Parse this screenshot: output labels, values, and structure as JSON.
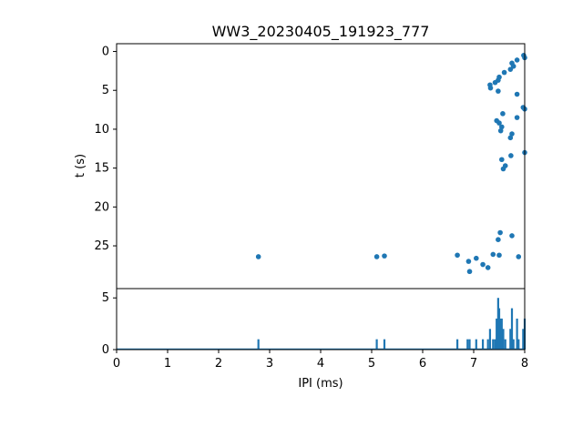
{
  "chart_data": [
    {
      "type": "scatter",
      "title": "WW3_20230405_191923_777",
      "ylabel": "t (s)",
      "xlim": [
        0,
        8
      ],
      "ylim": [
        30.5,
        -1
      ],
      "y_inverted": true,
      "yticks": [
        0,
        5,
        10,
        15,
        20,
        25
      ],
      "color": "#1f77b4",
      "points": [
        [
          7.98,
          0.5
        ],
        [
          8.0,
          0.8
        ],
        [
          7.85,
          1.1
        ],
        [
          7.75,
          1.5
        ],
        [
          7.78,
          1.9
        ],
        [
          7.72,
          2.3
        ],
        [
          7.6,
          2.7
        ],
        [
          7.5,
          3.3
        ],
        [
          7.48,
          3.7
        ],
        [
          7.42,
          4.0
        ],
        [
          7.32,
          4.3
        ],
        [
          7.33,
          4.7
        ],
        [
          7.48,
          5.1
        ],
        [
          7.85,
          5.5
        ],
        [
          7.97,
          7.2
        ],
        [
          8.0,
          7.4
        ],
        [
          7.57,
          8.0
        ],
        [
          7.85,
          8.5
        ],
        [
          7.45,
          8.9
        ],
        [
          7.5,
          9.2
        ],
        [
          7.55,
          9.7
        ],
        [
          7.53,
          10.2
        ],
        [
          7.75,
          10.6
        ],
        [
          7.72,
          11.1
        ],
        [
          8.0,
          13.0
        ],
        [
          7.73,
          13.4
        ],
        [
          7.55,
          13.9
        ],
        [
          7.62,
          14.7
        ],
        [
          7.58,
          15.1
        ],
        [
          7.52,
          23.3
        ],
        [
          7.75,
          23.7
        ],
        [
          7.48,
          24.2
        ],
        [
          2.78,
          26.4
        ],
        [
          5.1,
          26.4
        ],
        [
          5.25,
          26.3
        ],
        [
          6.68,
          26.2
        ],
        [
          7.38,
          26.1
        ],
        [
          7.5,
          26.2
        ],
        [
          7.88,
          26.4
        ],
        [
          7.05,
          26.6
        ],
        [
          6.9,
          27.0
        ],
        [
          7.18,
          27.4
        ],
        [
          7.28,
          27.8
        ],
        [
          6.92,
          28.3
        ]
      ]
    },
    {
      "type": "bar",
      "xlabel": "IPI (ms)",
      "xlim": [
        0,
        8
      ],
      "ylim": [
        0,
        5.9
      ],
      "xticks": [
        0,
        1,
        2,
        3,
        4,
        5,
        6,
        7,
        8
      ],
      "yticks": [
        0,
        5
      ],
      "color": "#1f77b4",
      "bins": [
        [
          2.78,
          1
        ],
        [
          5.1,
          1
        ],
        [
          5.25,
          1
        ],
        [
          6.68,
          1
        ],
        [
          6.88,
          1
        ],
        [
          6.92,
          1
        ],
        [
          7.05,
          1
        ],
        [
          7.18,
          1
        ],
        [
          7.28,
          1
        ],
        [
          7.32,
          2
        ],
        [
          7.38,
          1
        ],
        [
          7.42,
          1
        ],
        [
          7.45,
          3
        ],
        [
          7.48,
          5
        ],
        [
          7.5,
          4
        ],
        [
          7.53,
          3
        ],
        [
          7.55,
          3
        ],
        [
          7.58,
          2
        ],
        [
          7.62,
          1
        ],
        [
          7.72,
          2
        ],
        [
          7.75,
          4
        ],
        [
          7.78,
          1
        ],
        [
          7.85,
          3
        ],
        [
          7.88,
          1
        ],
        [
          7.97,
          2
        ],
        [
          8.0,
          3
        ]
      ]
    }
  ]
}
